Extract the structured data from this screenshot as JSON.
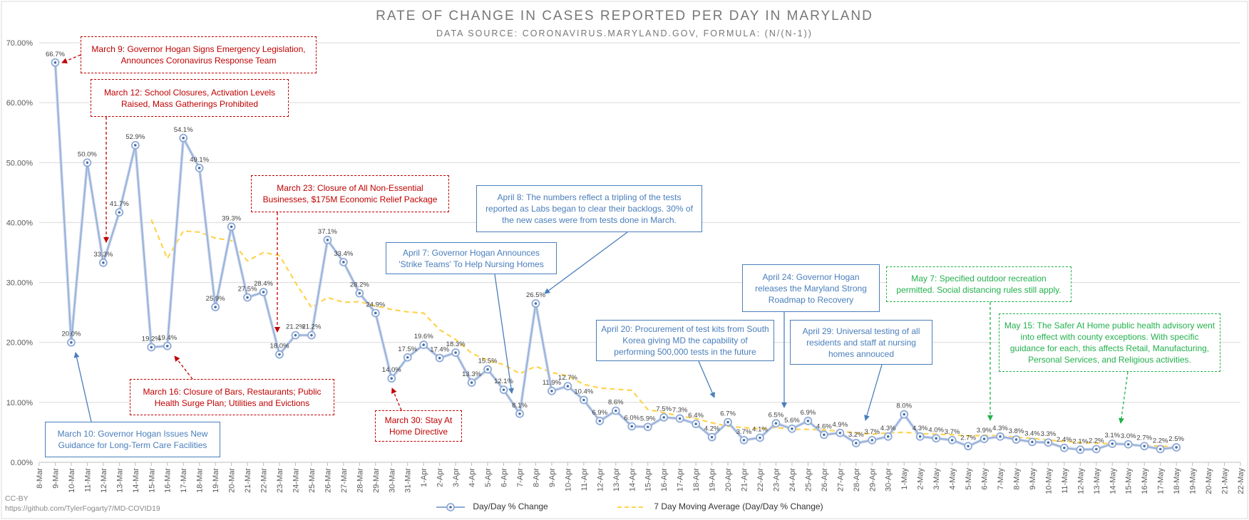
{
  "title": "RATE OF CHANGE IN CASES REPORTED PER DAY IN MARYLAND",
  "subtitle": "DATA SOURCE: CORONAVIRUS.MARYLAND.GOV, FORMULA: (N/(N-1))",
  "credit_license": "CC-BY",
  "credit_url": "https://github.com/TylerFogarty7/MD-COVID19",
  "chart_data": {
    "type": "line",
    "ylim": [
      0,
      70
    ],
    "y_ticks": [
      "0.00%",
      "10.00%",
      "20.00%",
      "30.00%",
      "40.00%",
      "50.00%",
      "60.00%",
      "70.00%"
    ],
    "grid": "horizontal",
    "legend_position": "bottom",
    "categories": [
      "8-Mar",
      "9-Mar",
      "10-Mar",
      "11-Mar",
      "12-Mar",
      "13-Mar",
      "14-Mar",
      "15-Mar",
      "16-Mar",
      "17-Mar",
      "18-Mar",
      "19-Mar",
      "20-Mar",
      "21-Mar",
      "22-Mar",
      "23-Mar",
      "24-Mar",
      "25-Mar",
      "26-Mar",
      "27-Mar",
      "28-Mar",
      "29-Mar",
      "30-Mar",
      "31-Mar",
      "1-Apr",
      "2-Apr",
      "3-Apr",
      "4-Apr",
      "5-Apr",
      "6-Apr",
      "7-Apr",
      "8-Apr",
      "9-Apr",
      "10-Apr",
      "11-Apr",
      "12-Apr",
      "13-Apr",
      "14-Apr",
      "15-Apr",
      "16-Apr",
      "17-Apr",
      "18-Apr",
      "19-Apr",
      "20-Apr",
      "21-Apr",
      "22-Apr",
      "23-Apr",
      "24-Apr",
      "25-Apr",
      "26-Apr",
      "27-Apr",
      "28-Apr",
      "29-Apr",
      "30-Apr",
      "1-May",
      "2-May",
      "3-May",
      "4-May",
      "5-May",
      "6-May",
      "7-May",
      "8-May",
      "9-May",
      "10-May",
      "11-May",
      "12-May",
      "13-May",
      "14-May",
      "15-May",
      "16-May",
      "17-May",
      "18-May",
      "19-May",
      "20-May",
      "21-May",
      "22-May"
    ],
    "series": [
      {
        "name": "Day/Day % Change",
        "color": "#8eaad6",
        "labels": [
          "",
          "66.7%",
          "20.0%",
          "50.0%",
          "33.3%",
          "41.7%",
          "52.9%",
          "19.2%",
          "19.4%",
          "54.1%",
          "49.1%",
          "25.9%",
          "39.3%",
          "27.5%",
          "28.4%",
          "18.0%",
          "21.2%",
          "21.2%",
          "37.1%",
          "33.4%",
          "28.2%",
          "24.9%",
          "14.0%",
          "17.5%",
          "19.6%",
          "17.4%",
          "18.3%",
          "13.3%",
          "15.5%",
          "12.1%",
          "8.1%",
          "26.5%",
          "11.9%",
          "12.7%",
          "10.4%",
          "6.9%",
          "8.6%",
          "6.0%",
          "5.9%",
          "7.5%",
          "7.3%",
          "6.4%",
          "4.2%",
          "6.7%",
          "3.7%",
          "4.1%",
          "6.5%",
          "5.6%",
          "6.9%",
          "4.6%",
          "4.9%",
          "3.2%",
          "3.7%",
          "4.3%",
          "8.0%",
          "4.3%",
          "4.0%",
          "3.7%",
          "2.7%",
          "3.9%",
          "4.3%",
          "3.8%",
          "3.4%",
          "3.3%",
          "2.4%",
          "2.1%",
          "2.2%",
          "3.1%",
          "3.0%",
          "2.7%",
          "2.2%",
          "2.5%",
          "",
          "",
          "",
          ""
        ],
        "values": [
          null,
          66.7,
          20.0,
          50.0,
          33.3,
          41.7,
          52.9,
          19.2,
          19.4,
          54.1,
          49.1,
          25.9,
          39.3,
          27.5,
          28.4,
          18.0,
          21.2,
          21.2,
          37.1,
          33.4,
          28.2,
          24.9,
          14.0,
          17.5,
          19.6,
          17.4,
          18.3,
          13.3,
          15.5,
          12.1,
          8.1,
          26.5,
          11.9,
          12.7,
          10.4,
          6.9,
          8.6,
          6.0,
          5.9,
          7.5,
          7.3,
          6.4,
          4.2,
          6.7,
          3.7,
          4.1,
          6.5,
          5.6,
          6.9,
          4.6,
          4.9,
          3.2,
          3.7,
          4.3,
          8.0,
          4.3,
          4.0,
          3.7,
          2.7,
          3.9,
          4.3,
          3.8,
          3.4,
          3.3,
          2.4,
          2.1,
          2.2,
          3.1,
          3.0,
          2.7,
          2.2,
          2.5,
          null,
          null,
          null,
          null
        ]
      },
      {
        "name": "7 Day Moving Average (Day/Day % Change)",
        "color": "#ffd34f",
        "values": [
          null,
          null,
          null,
          null,
          null,
          null,
          null,
          40.5,
          34.0,
          38.6,
          38.4,
          37.4,
          37.0,
          33.6,
          35.0,
          34.5,
          30.0,
          25.8,
          27.5,
          26.7,
          26.8,
          26.1,
          25.5,
          25.1,
          24.9,
          22.1,
          20.5,
          18.2,
          17.0,
          16.3,
          14.8,
          16.0,
          15.0,
          14.4,
          13.0,
          12.4,
          12.2,
          12.0,
          8.8,
          8.3,
          7.7,
          7.3,
          6.6,
          6.0,
          5.8,
          5.6,
          5.8,
          5.5,
          5.5,
          5.4,
          5.2,
          4.9,
          4.7,
          4.9,
          5.0,
          4.8,
          4.7,
          4.6,
          4.4,
          4.5,
          4.4,
          4.2,
          4.0,
          3.7,
          3.5,
          3.3,
          3.2,
          3.1,
          3.0,
          2.8,
          2.7,
          2.6,
          null,
          null,
          null,
          null
        ]
      }
    ]
  },
  "annotations": [
    {
      "id": "mar9",
      "color": "red",
      "text": "March 9: Governor Hogan Signs Emergency Legislation, Announces Coronavirus Response Team"
    },
    {
      "id": "mar12",
      "color": "red",
      "text": "March 12: School Closures, Activation Levels Raised, Mass Gatherings Prohibited"
    },
    {
      "id": "mar23",
      "color": "red",
      "text": "March 23: Closure of All Non-Essential Businesses, $175M Economic Relief Package"
    },
    {
      "id": "apr8",
      "color": "blue",
      "text": "April 8: The numbers reflect a tripling of the tests reported as Labs began to clear their backlogs. 30% of the new cases were from tests done in March."
    },
    {
      "id": "apr7",
      "color": "blue",
      "text": "April 7: Governor Hogan Announces 'Strike Teams' To Help Nursing Homes"
    },
    {
      "id": "apr24",
      "color": "blue",
      "text": "April 24: Governor Hogan releases the Maryland Strong Roadmap to Recovery"
    },
    {
      "id": "may7",
      "color": "green",
      "text": "May 7: Specified outdoor recreation permitted. Social distancing rules still apply."
    },
    {
      "id": "may15",
      "color": "green",
      "text": "May 15: The Safer At Home public health advisory went into effect with county exceptions. With specific guidance for each, this affects Retail, Manufacturing, Personal Services, and Religious activities."
    },
    {
      "id": "apr20",
      "color": "blue",
      "text": "April 20: Procurement of test kits from South Korea giving MD the capability of performing 500,000 tests in the future"
    },
    {
      "id": "apr29",
      "color": "blue",
      "text": "April 29: Universal testing of all residents and staff at nursing homes annouced"
    },
    {
      "id": "mar16",
      "color": "red",
      "text": "March 16: Closure of Bars, Restaurants; Public Health Surge Plan; Utilities and Evictions"
    },
    {
      "id": "mar30",
      "color": "red",
      "text": "March 30: Stay At Home Directive"
    },
    {
      "id": "mar10",
      "color": "blue",
      "text": "March 10: Governor Hogan Issues New Guidance for Long-Term Care Facilities"
    }
  ]
}
